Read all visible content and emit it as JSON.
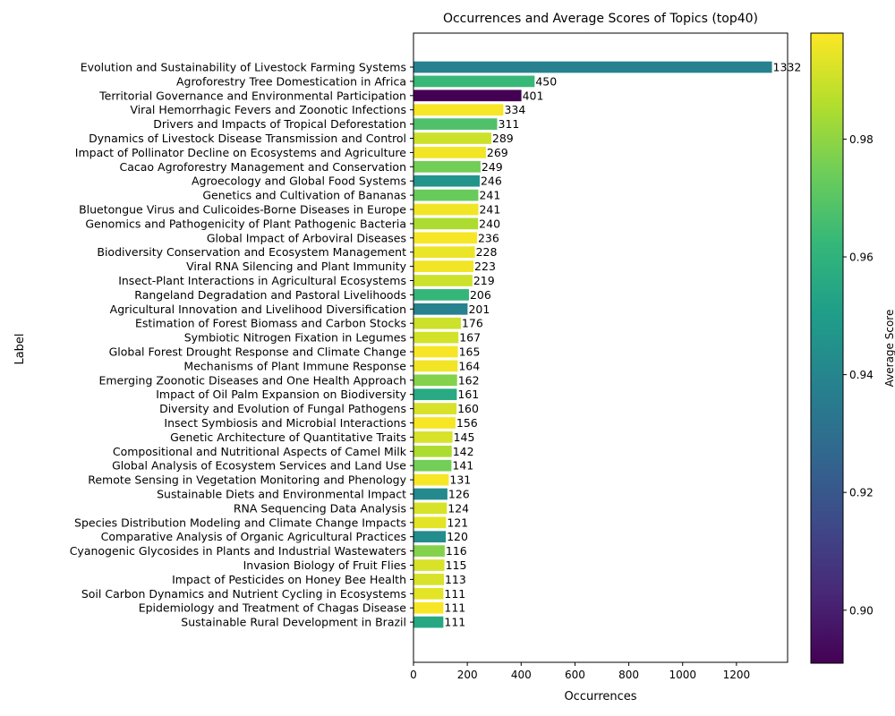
{
  "chart_data": {
    "type": "bar",
    "orientation": "horizontal",
    "title": "Occurrences and Average Scores of Topics (top40)",
    "xlabel": "Occurrences",
    "ylabel": "Label",
    "xlim": [
      0,
      1390
    ],
    "xticks": [
      0,
      200,
      400,
      600,
      800,
      1000,
      1200
    ],
    "colorbar": {
      "label": "Average Score",
      "range": [
        0.891,
        0.998
      ],
      "ticks": [
        0.9,
        0.92,
        0.94,
        0.96,
        0.98
      ],
      "tick_labels": [
        "0.90",
        "0.92",
        "0.94",
        "0.96",
        "0.98"
      ],
      "colormap": "viridis"
    },
    "categories": [
      "Evolution and Sustainability of Livestock Farming Systems",
      "Agroforestry Tree Domestication in Africa",
      "Territorial Governance and Environmental Participation",
      "Viral Hemorrhagic Fevers and Zoonotic Infections",
      "Drivers and Impacts of Tropical Deforestation",
      "Dynamics of Livestock Disease Transmission and Control",
      "Impact of Pollinator Decline on Ecosystems and Agriculture",
      "Cacao Agroforestry Management and Conservation",
      "Agroecology and Global Food Systems",
      "Genetics and Cultivation of Bananas",
      "Bluetongue Virus and Culicoides-Borne Diseases in Europe",
      "Genomics and Pathogenicity of Plant Pathogenic Bacteria",
      "Global Impact of Arboviral Diseases",
      "Biodiversity Conservation and Ecosystem Management",
      "Viral RNA Silencing and Plant Immunity",
      "Insect-Plant Interactions in Agricultural Ecosystems",
      "Rangeland Degradation and Pastoral Livelihoods",
      "Agricultural Innovation and Livelihood Diversification",
      "Estimation of Forest Biomass and Carbon Stocks",
      "Symbiotic Nitrogen Fixation in Legumes",
      "Global Forest Drought Response and Climate Change",
      "Mechanisms of Plant Immune Response",
      "Emerging Zoonotic Diseases and One Health Approach",
      "Impact of Oil Palm Expansion on Biodiversity",
      "Diversity and Evolution of Fungal Pathogens",
      "Insect Symbiosis and Microbial Interactions",
      "Genetic Architecture of Quantitative Traits",
      "Compositional and Nutritional Aspects of Camel Milk",
      "Global Analysis of Ecosystem Services and Land Use",
      "Remote Sensing in Vegetation Monitoring and Phenology",
      "Sustainable Diets and Environmental Impact",
      "RNA Sequencing Data Analysis",
      "Species Distribution Modeling and Climate Change Impacts",
      "Comparative Analysis of Organic Agricultural Practices",
      "Cyanogenic Glycosides in Plants and Industrial Wastewaters",
      "Invasion Biology of Fruit Flies",
      "Impact of Pesticides on Honey Bee Health",
      "Soil Carbon Dynamics and Nutrient Cycling in Ecosystems",
      "Epidemiology and Treatment of Chagas Disease",
      "Sustainable Rural Development in Brazil"
    ],
    "values": [
      1332,
      450,
      401,
      334,
      311,
      289,
      269,
      249,
      246,
      241,
      241,
      240,
      236,
      228,
      223,
      219,
      206,
      201,
      176,
      167,
      165,
      164,
      162,
      161,
      160,
      156,
      145,
      142,
      141,
      131,
      126,
      124,
      121,
      120,
      116,
      115,
      113,
      111,
      111,
      111
    ],
    "value_labels": [
      "1332",
      "450",
      "401",
      "334",
      "311",
      "289",
      "269",
      "249",
      "246",
      "241",
      "241",
      "240",
      "236",
      "228",
      "223",
      "219",
      "206",
      "201",
      "176",
      "167",
      "165",
      "164",
      "162",
      "161",
      "160",
      "156",
      "145",
      "142",
      "141",
      "131",
      "126",
      "124",
      "121",
      "120",
      "116",
      "115",
      "113",
      "111",
      "111",
      "111"
    ],
    "scores": [
      0.938,
      0.963,
      0.891,
      0.997,
      0.968,
      0.99,
      0.996,
      0.975,
      0.946,
      0.973,
      0.996,
      0.985,
      0.997,
      0.995,
      0.996,
      0.99,
      0.962,
      0.938,
      0.99,
      0.991,
      0.997,
      0.996,
      0.978,
      0.956,
      0.992,
      0.997,
      0.992,
      0.985,
      0.975,
      0.997,
      0.942,
      0.992,
      0.994,
      0.943,
      0.978,
      0.992,
      0.992,
      0.994,
      0.997,
      0.955
    ]
  }
}
